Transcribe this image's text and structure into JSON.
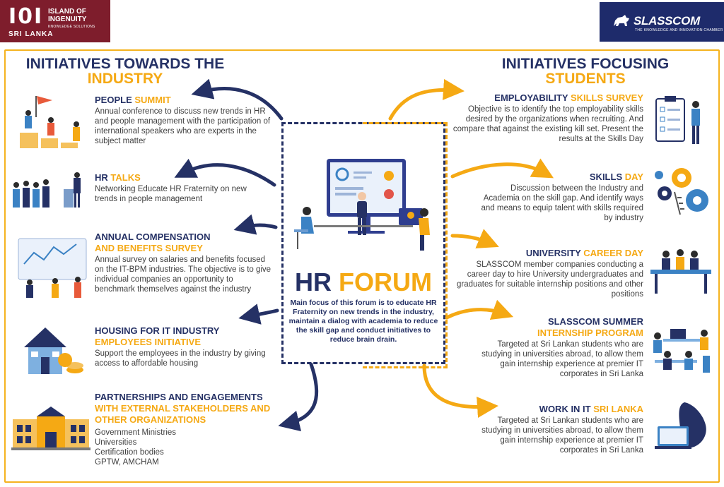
{
  "logo_left": {
    "mark": "I0I",
    "line1": "ISLAND OF",
    "line2": "INGENUITY",
    "sub": "KNOWLEDGE SOLUTIONS",
    "country": "SRI LANKA"
  },
  "logo_right": {
    "brand": "SLASSCOM",
    "tagline": "THE KNOWLEDGE AND INNOVATION CHAMBER"
  },
  "left_title": {
    "line1": "INITIATIVES TOWARDS THE",
    "line2": "INDUSTRY"
  },
  "right_title": {
    "line1": "INITIATIVES FOCUSING",
    "line2": "STUDENTS"
  },
  "left_items": [
    {
      "head_a": "PEOPLE ",
      "head_b": "SUMMIT",
      "desc": "Annual conference to discuss new trends in HR and people management with the participation of international speakers who are experts in the subject matter"
    },
    {
      "head_a": "HR ",
      "head_b": "TALKS",
      "desc": "Networking Educate HR Fraternity on new trends in people management"
    },
    {
      "head_a": "ANNUAL COMPENSATION",
      "head_b": "AND BENEFITS SURVEY",
      "desc": "Annual survey on salaries and benefits focused on the IT-BPM industries. The objective is to give individual companies an opportunity to benchmark themselves against the industry"
    },
    {
      "head_a": "HOUSING FOR IT INDUSTRY",
      "head_b": "EMPLOYEES INITIATIVE",
      "desc": "Support the employees in the industry by giving access to affordable housing"
    },
    {
      "head_a": "PARTNERSHIPS AND ENGAGEMENTS",
      "head_b": "WITH EXTERNAL STAKEHOLDERS AND OTHER ORGANIZATIONS",
      "desc_lines": [
        "Government Ministries",
        "Universities",
        "Certification bodies",
        "GPTW, AMCHAM"
      ]
    }
  ],
  "right_items": [
    {
      "head_a": "EMPLOYABILITY ",
      "head_b": "SKILLS SURVEY",
      "desc": "Objective is to identify the top employability skills desired by the organizations when recruiting. And compare that against the existing kill set. Present the results at the Skills Day"
    },
    {
      "head_a": "SKILLS ",
      "head_b": "DAY",
      "desc": "Discussion between the Industry and Academia on the skill gap. And identify ways and means to equip talent with skills required by industry"
    },
    {
      "head_a": "UNIVERSITY ",
      "head_b": "CAREER DAY",
      "desc": "SLASSCOM member companies conducting a career day to hire University undergraduates and graduates for suitable internship positions and other positions"
    },
    {
      "head_a": "SLASSCOM SUMMER",
      "head_b": "INTERNSHIP PROGRAM",
      "desc": "Targeted at Sri Lankan students who are studying in universities abroad, to allow them gain internship experience at premier IT corporates in Sri Lanka"
    },
    {
      "head_a": "WORK IN IT ",
      "head_b": "SRI LANKA",
      "desc": "Targeted at Sri Lankan students who are studying in universities abroad, to allow them gain internship experience at premier IT corporates in Sri Lanka"
    }
  ],
  "forum": {
    "title_a": "HR ",
    "title_b": "FORUM",
    "desc": "Main focus of this forum is to educate HR Fraternity on new trends in the industry, maintain a dialog with academia to reduce the skill gap and conduct initiatives to reduce brain drain."
  },
  "colors": {
    "navy": "#253165",
    "gold": "#f5a914",
    "maroon": "#7e1d2c",
    "slasscom_blue": "#1e2b6b"
  }
}
